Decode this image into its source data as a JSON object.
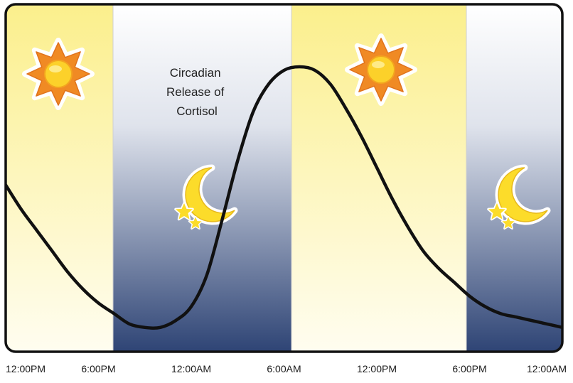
{
  "chart_data": {
    "type": "line",
    "title": "Circadian Release of Cortisol",
    "title_lines": [
      "Circadian",
      "Release of",
      "Cortisol"
    ],
    "xlabel": "",
    "ylabel": "",
    "x_tick_labels": [
      "12:00PM",
      "6:00PM",
      "12:00AM",
      "6:00AM",
      "12:00PM",
      "6:00PM",
      "12:00AM"
    ],
    "x_range_hours": [
      0,
      36
    ],
    "y_range": [
      0,
      1
    ],
    "grid": false,
    "legend": "none",
    "bands": [
      {
        "kind": "day",
        "start": 0,
        "end": 6
      },
      {
        "kind": "night",
        "start": 6,
        "end": 18
      },
      {
        "kind": "day",
        "start": 18,
        "end": 30
      },
      {
        "kind": "night",
        "start": 30,
        "end": 36
      }
    ],
    "series": [
      {
        "x": [
          0,
          1,
          2,
          3,
          4,
          5,
          6,
          7,
          8,
          9,
          10,
          11,
          12,
          13,
          14,
          15,
          16,
          17,
          18,
          19,
          20,
          21,
          22,
          23,
          24,
          25,
          26,
          27,
          28,
          29,
          30,
          31,
          32,
          33,
          34,
          35,
          36
        ],
        "values": [
          0.48,
          0.41,
          0.35,
          0.29,
          0.23,
          0.18,
          0.14,
          0.11,
          0.08,
          0.07,
          0.07,
          0.09,
          0.13,
          0.22,
          0.38,
          0.55,
          0.69,
          0.77,
          0.81,
          0.82,
          0.81,
          0.77,
          0.7,
          0.62,
          0.53,
          0.44,
          0.36,
          0.29,
          0.24,
          0.2,
          0.16,
          0.13,
          0.11,
          0.1,
          0.09,
          0.08,
          0.07
        ]
      }
    ],
    "colors": {
      "day_top": "#fbef8c",
      "day_bottom": "#fffdf0",
      "night_top": "#ffffff",
      "night_bottom": "#2e4475",
      "curve": "#111111",
      "frame": "#111111",
      "sun_ray": "#f08a24",
      "sun_core": "#fcd12a",
      "moon": "#fcdc2a"
    },
    "icons": [
      "sun-icon",
      "moon-with-stars-icon",
      "sun-icon",
      "moon-with-stars-icon"
    ]
  }
}
